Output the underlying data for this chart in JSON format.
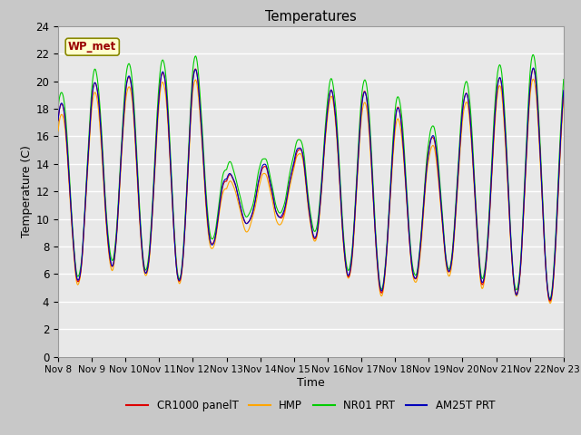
{
  "title": "Temperatures",
  "xlabel": "Time",
  "ylabel": "Temperature (C)",
  "ylim": [
    0,
    24
  ],
  "xlim_days": 15,
  "fig_bg_color": "#c8c8c8",
  "plot_bg_color": "#e8e8e8",
  "grid_color": "white",
  "annotation_text": "WP_met",
  "annotation_bg": "#ffffcc",
  "annotation_border": "#888800",
  "annotation_text_color": "#990000",
  "series_colors": [
    "#dd0000",
    "#ffa500",
    "#00cc00",
    "#0000bb"
  ],
  "series_labels": [
    "CR1000 panelT",
    "HMP",
    "NR01 PRT",
    "AM25T PRT"
  ],
  "x_tick_labels": [
    "Nov 8",
    "Nov 9",
    "Nov 10",
    "Nov 11",
    "Nov 12",
    "Nov 13",
    "Nov 14",
    "Nov 15",
    "Nov 16",
    "Nov 17",
    "Nov 18",
    "Nov 19",
    "Nov 20",
    "Nov 21",
    "Nov 22",
    "Nov 23"
  ],
  "yticks": [
    0,
    2,
    4,
    6,
    8,
    10,
    12,
    14,
    16,
    18,
    20,
    22,
    24
  ]
}
